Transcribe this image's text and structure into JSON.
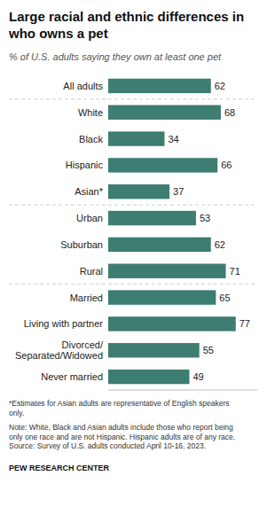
{
  "chart_data": {
    "type": "bar",
    "orientation": "horizontal",
    "title": "Large racial and ethnic differences in\nwho owns a pet",
    "subtitle": "% of U.S. adults saying they own at least one pet",
    "categories": [
      "All adults",
      "White",
      "Black",
      "Hispanic",
      "Asian*",
      "Urban",
      "Suburban",
      "Rural",
      "Married",
      "Living with partner",
      "Divorced/\nSeparated/Widowed",
      "Never married"
    ],
    "values": [
      62,
      68,
      34,
      66,
      37,
      53,
      62,
      71,
      65,
      77,
      55,
      49
    ],
    "color": "#3d7d72",
    "xlim": [
      0,
      90
    ],
    "data_labels": true,
    "tick_labels": "y",
    "grid": false,
    "annotations": [
      "*Estimates for Asian adults are representative of English speakers\nonly.",
      "Note: White, Black and Asian adults include those who report being\nonly one race and are not Hispanic. Hispanic adults are of any race.\nSource: Survey of U.S. adults conducted April 10-16, 2023.",
      "PEW RESEARCH CENTER"
    ]
  }
}
